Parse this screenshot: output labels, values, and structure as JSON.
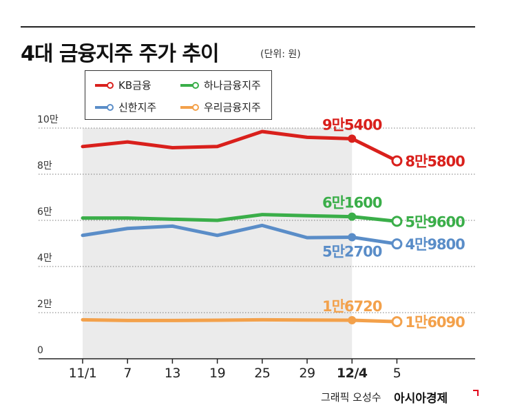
{
  "title": "4대 금융지주 주가 추이",
  "unit": "(단위: 원)",
  "credit": "그래픽 오성수",
  "brand": "아시아경제",
  "colors": {
    "KB금융": "#d9201c",
    "하나금융지주": "#3aae49",
    "신한지주": "#5a8dc8",
    "우리금융지주": "#f3a14b",
    "band": "#ebebeb"
  },
  "chart_data": {
    "type": "line",
    "title": "4대 금융지주 주가 추이",
    "unit": "(단위: 원)",
    "x": [
      "11/1",
      "7",
      "13",
      "19",
      "25",
      "29",
      "12/4",
      "5"
    ],
    "ylim": [
      0,
      100000
    ],
    "y_ticks": [
      {
        "value": 0,
        "label": "0"
      },
      {
        "value": 20000,
        "label": "2만"
      },
      {
        "value": 40000,
        "label": "4만"
      },
      {
        "value": 60000,
        "label": "6만"
      },
      {
        "value": 80000,
        "label": "8만"
      },
      {
        "value": 100000,
        "label": "10만"
      }
    ],
    "grid": true,
    "legend_position": "top-left",
    "shaded_range": [
      "11/1",
      "12/4"
    ],
    "series": [
      {
        "name": "KB금융",
        "values": [
          92000,
          94000,
          91500,
          92000,
          98500,
          96000,
          95400,
          85800
        ],
        "labels": [
          {
            "index": 6,
            "text": "9만5400"
          },
          {
            "index": 7,
            "text": "8만5800"
          }
        ]
      },
      {
        "name": "하나금융지주",
        "values": [
          61000,
          61000,
          60500,
          60000,
          62500,
          62000,
          61600,
          59600
        ],
        "labels": [
          {
            "index": 6,
            "text": "6만1600"
          },
          {
            "index": 7,
            "text": "5만9600"
          }
        ]
      },
      {
        "name": "신한지주",
        "values": [
          53500,
          56500,
          57500,
          53500,
          57800,
          52500,
          52700,
          49800
        ],
        "labels": [
          {
            "index": 6,
            "text": "5만2700"
          },
          {
            "index": 7,
            "text": "4만9800"
          }
        ]
      },
      {
        "name": "우리금융지주",
        "values": [
          16900,
          16600,
          16600,
          16700,
          16900,
          16800,
          16720,
          16090
        ],
        "labels": [
          {
            "index": 6,
            "text": "1만6720"
          },
          {
            "index": 7,
            "text": "1만6090"
          }
        ]
      }
    ]
  },
  "x_label_bold": [
    "12/4"
  ]
}
